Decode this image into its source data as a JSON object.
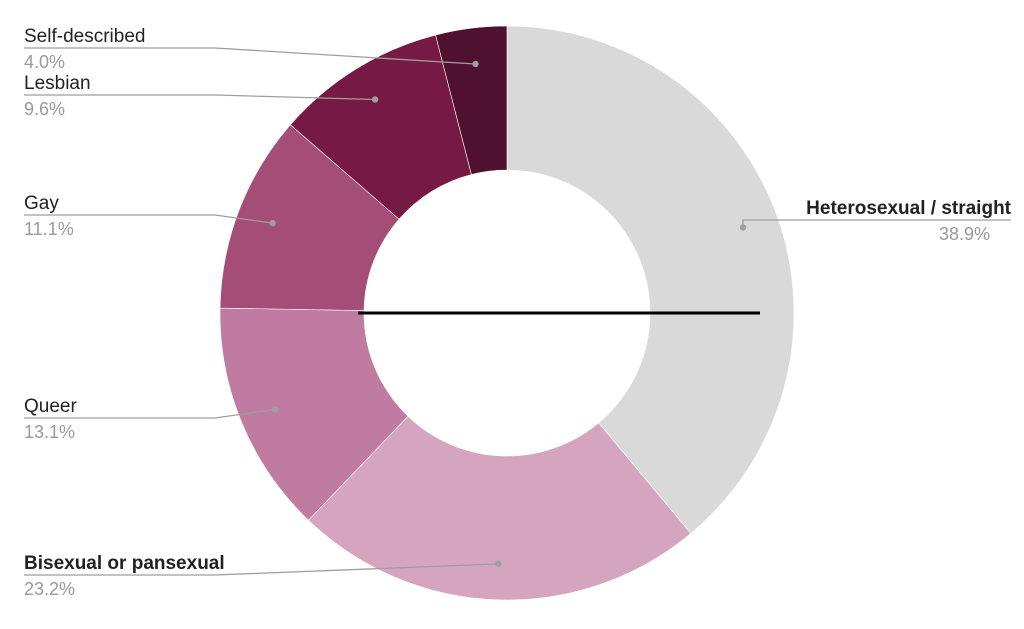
{
  "chart_data": {
    "type": "pie",
    "variant": "donut",
    "title": "",
    "categories": [
      "Heterosexual / straight",
      "Bisexual or pansexual",
      "Queer",
      "Gay",
      "Lesbian",
      "Self-described"
    ],
    "values": [
      38.9,
      23.2,
      13.1,
      11.1,
      9.6,
      4.0
    ],
    "value_labels": [
      "38.9%",
      "23.2%",
      "13.1%",
      "11.1%",
      "9.6%",
      "4.0%"
    ],
    "colors": [
      "#d9d9d9",
      "#d5a5bf",
      "#c07ba1",
      "#a44d77",
      "#761944",
      "#4f112f"
    ],
    "label_colors": {
      "name": "#222222",
      "value": "#9a9a9a",
      "leader": "#9e9e9e"
    },
    "legend": "none",
    "start": "top",
    "direction": "clockwise"
  }
}
